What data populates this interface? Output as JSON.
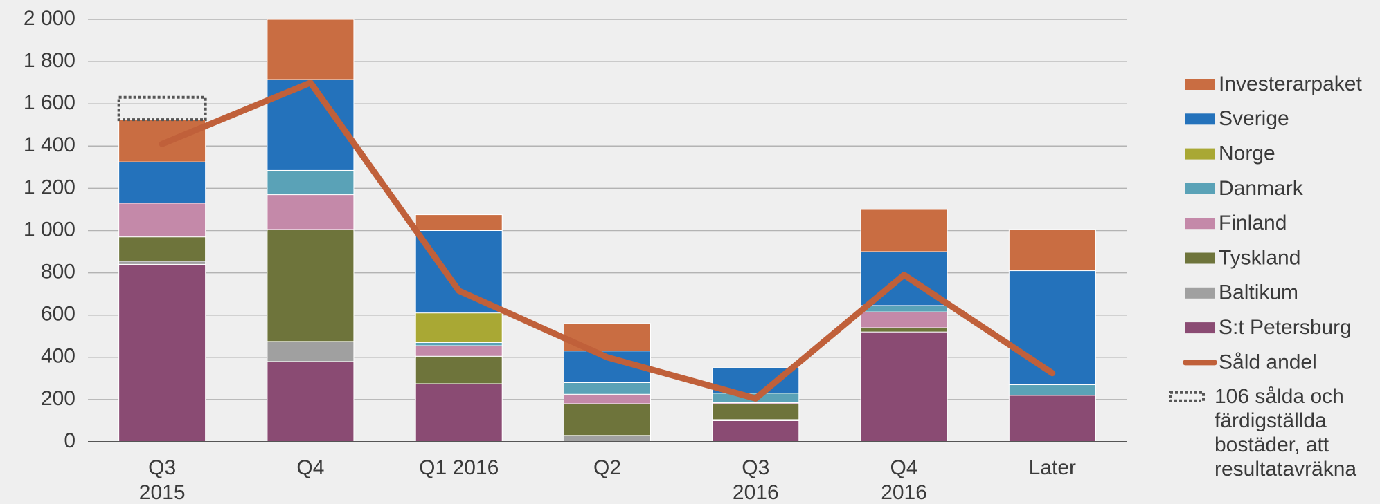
{
  "chart_data": {
    "type": "bar",
    "stacked": true,
    "categories": [
      "Q3\n2015",
      "Q4",
      "Q1 2016",
      "Q2",
      "Q3\n2016",
      "Q4\n2016",
      "Later"
    ],
    "series": [
      {
        "name": "S:t Petersburg",
        "color": "#8a4b73",
        "values": [
          840,
          380,
          275,
          0,
          100,
          520,
          220
        ]
      },
      {
        "name": "Baltikum",
        "color": "#a0a0a0",
        "values": [
          15,
          95,
          0,
          30,
          5,
          0,
          0
        ]
      },
      {
        "name": "Tyskland",
        "color": "#6e743b",
        "values": [
          115,
          530,
          130,
          150,
          75,
          20,
          0
        ]
      },
      {
        "name": "Finland",
        "color": "#c489a9",
        "values": [
          160,
          165,
          50,
          45,
          5,
          75,
          0
        ]
      },
      {
        "name": "Danmark",
        "color": "#5aa2b7",
        "values": [
          0,
          115,
          15,
          55,
          45,
          30,
          50
        ]
      },
      {
        "name": "Norge",
        "color": "#a9a834",
        "values": [
          0,
          0,
          140,
          0,
          0,
          0,
          0
        ]
      },
      {
        "name": "Sverige",
        "color": "#2472bb",
        "values": [
          195,
          430,
          390,
          150,
          120,
          255,
          540
        ]
      },
      {
        "name": "Investerarpaket",
        "color": "#c96d42",
        "values": [
          200,
          285,
          75,
          130,
          0,
          200,
          195
        ]
      },
      {
        "name": "Såld andel",
        "type": "line",
        "color": "#c0603a",
        "values": [
          1410,
          1700,
          715,
          400,
          205,
          790,
          325
        ]
      }
    ],
    "annotation": {
      "text": "106 sålda och\nfärdigställda\nbostäder, att\nresultatavräkna",
      "value": 106,
      "category": 0
    },
    "ylim": [
      0,
      2000
    ],
    "yticks": [
      0,
      200,
      400,
      600,
      800,
      {
        "value": 1000,
        "label": "1 000"
      },
      {
        "value": 1200,
        "label": "1 200"
      },
      {
        "value": 1400,
        "label": "1 400"
      },
      {
        "value": 1600,
        "label": "1 600"
      },
      {
        "value": 1800,
        "label": "1 800"
      },
      {
        "value": 2000,
        "label": "2 000"
      }
    ],
    "grid": true,
    "legend": "right"
  }
}
